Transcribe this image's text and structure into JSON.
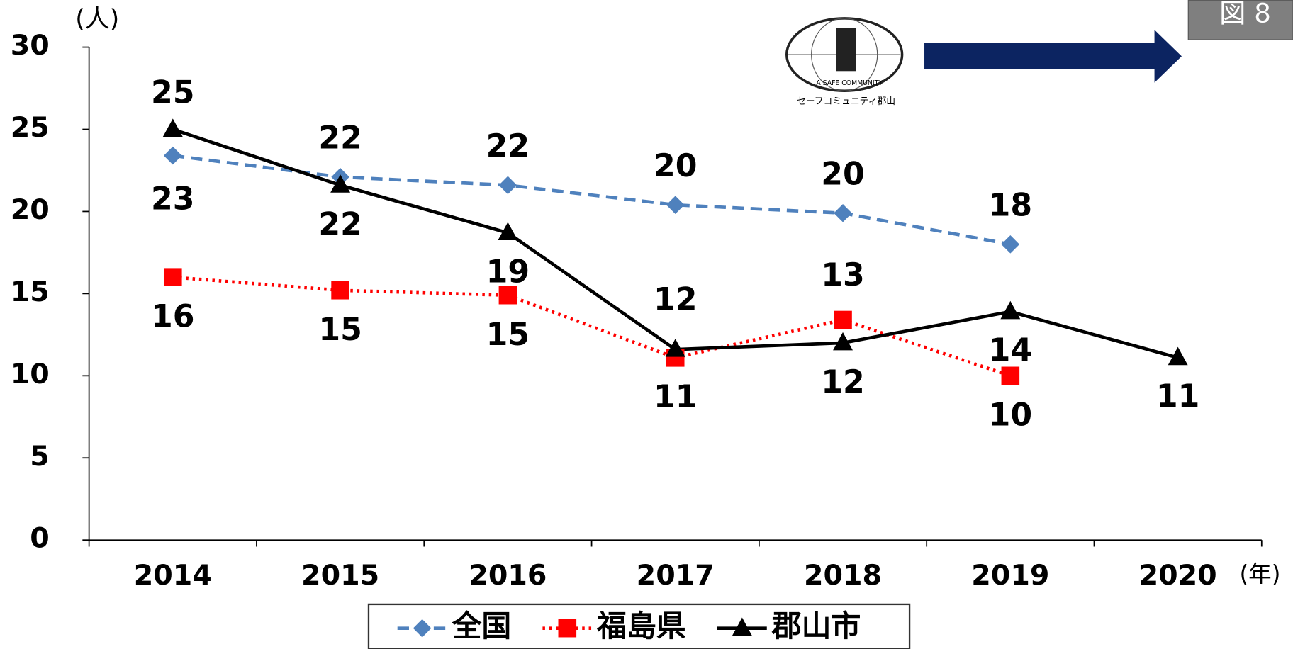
{
  "chart_data": {
    "type": "line",
    "y_axis_label": "(人)",
    "x_axis_label": "(年)",
    "figure_label": "図 8",
    "logo_text": "A SAFE COMMUNITY",
    "logo_caption": "セーフコミュニティ郡山",
    "categories": [
      "2014",
      "2015",
      "2016",
      "2017",
      "2018",
      "2019",
      "2020"
    ],
    "series": [
      {
        "name": "全国",
        "color": "#4f81bd",
        "marker": "diamond",
        "line_style": "dashed",
        "values": [
          23.4,
          22.1,
          21.6,
          20.4,
          19.9,
          18.0,
          null
        ],
        "value_labels": [
          "23",
          "22",
          "22",
          "20",
          "20",
          "18",
          null
        ]
      },
      {
        "name": "福島県",
        "color": "#ff0000",
        "marker": "square",
        "line_style": "dotted",
        "values": [
          16.0,
          15.2,
          14.9,
          11.1,
          13.4,
          10.0,
          null
        ],
        "value_labels": [
          "16",
          "15",
          "15",
          "11",
          "13",
          "10",
          null
        ]
      },
      {
        "name": "郡山市",
        "color": "#000000",
        "marker": "triangle",
        "line_style": "solid",
        "values": [
          25.0,
          21.6,
          18.7,
          11.6,
          12.0,
          13.9,
          11.1
        ],
        "value_labels": [
          "25",
          "22",
          "19",
          "12",
          "12",
          "14",
          "11"
        ]
      }
    ],
    "ylim": [
      0,
      30
    ],
    "yticks": [
      0,
      5,
      10,
      15,
      20,
      25,
      30
    ]
  }
}
